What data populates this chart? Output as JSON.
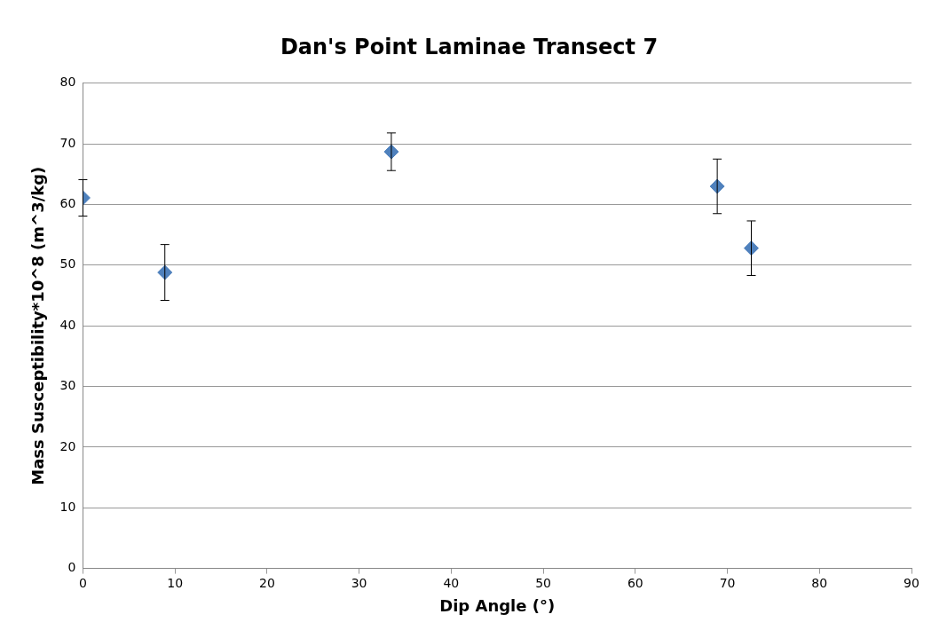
{
  "chart_data": {
    "type": "scatter",
    "title": "Dan's Point Laminae Transect 7",
    "xlabel": "Dip Angle (°)",
    "ylabel": "Mass Susceptibility*10^8 (m^3/kg)",
    "x": [
      0,
      8.9,
      33.5,
      68.9,
      72.6
    ],
    "values": [
      61.1,
      48.8,
      68.7,
      63.0,
      52.8
    ],
    "errors": [
      3.0,
      4.6,
      3.1,
      4.5,
      4.5
    ],
    "color": "#4f81bd",
    "marker": "diamond",
    "xlim": [
      0,
      90
    ],
    "xticks": [
      0,
      10,
      20,
      30,
      40,
      50,
      60,
      70,
      80,
      90
    ],
    "ylim": [
      0,
      80
    ],
    "yticks": [
      0,
      10,
      20,
      30,
      40,
      50,
      60,
      70,
      80
    ],
    "grid": "y",
    "legend": false
  }
}
